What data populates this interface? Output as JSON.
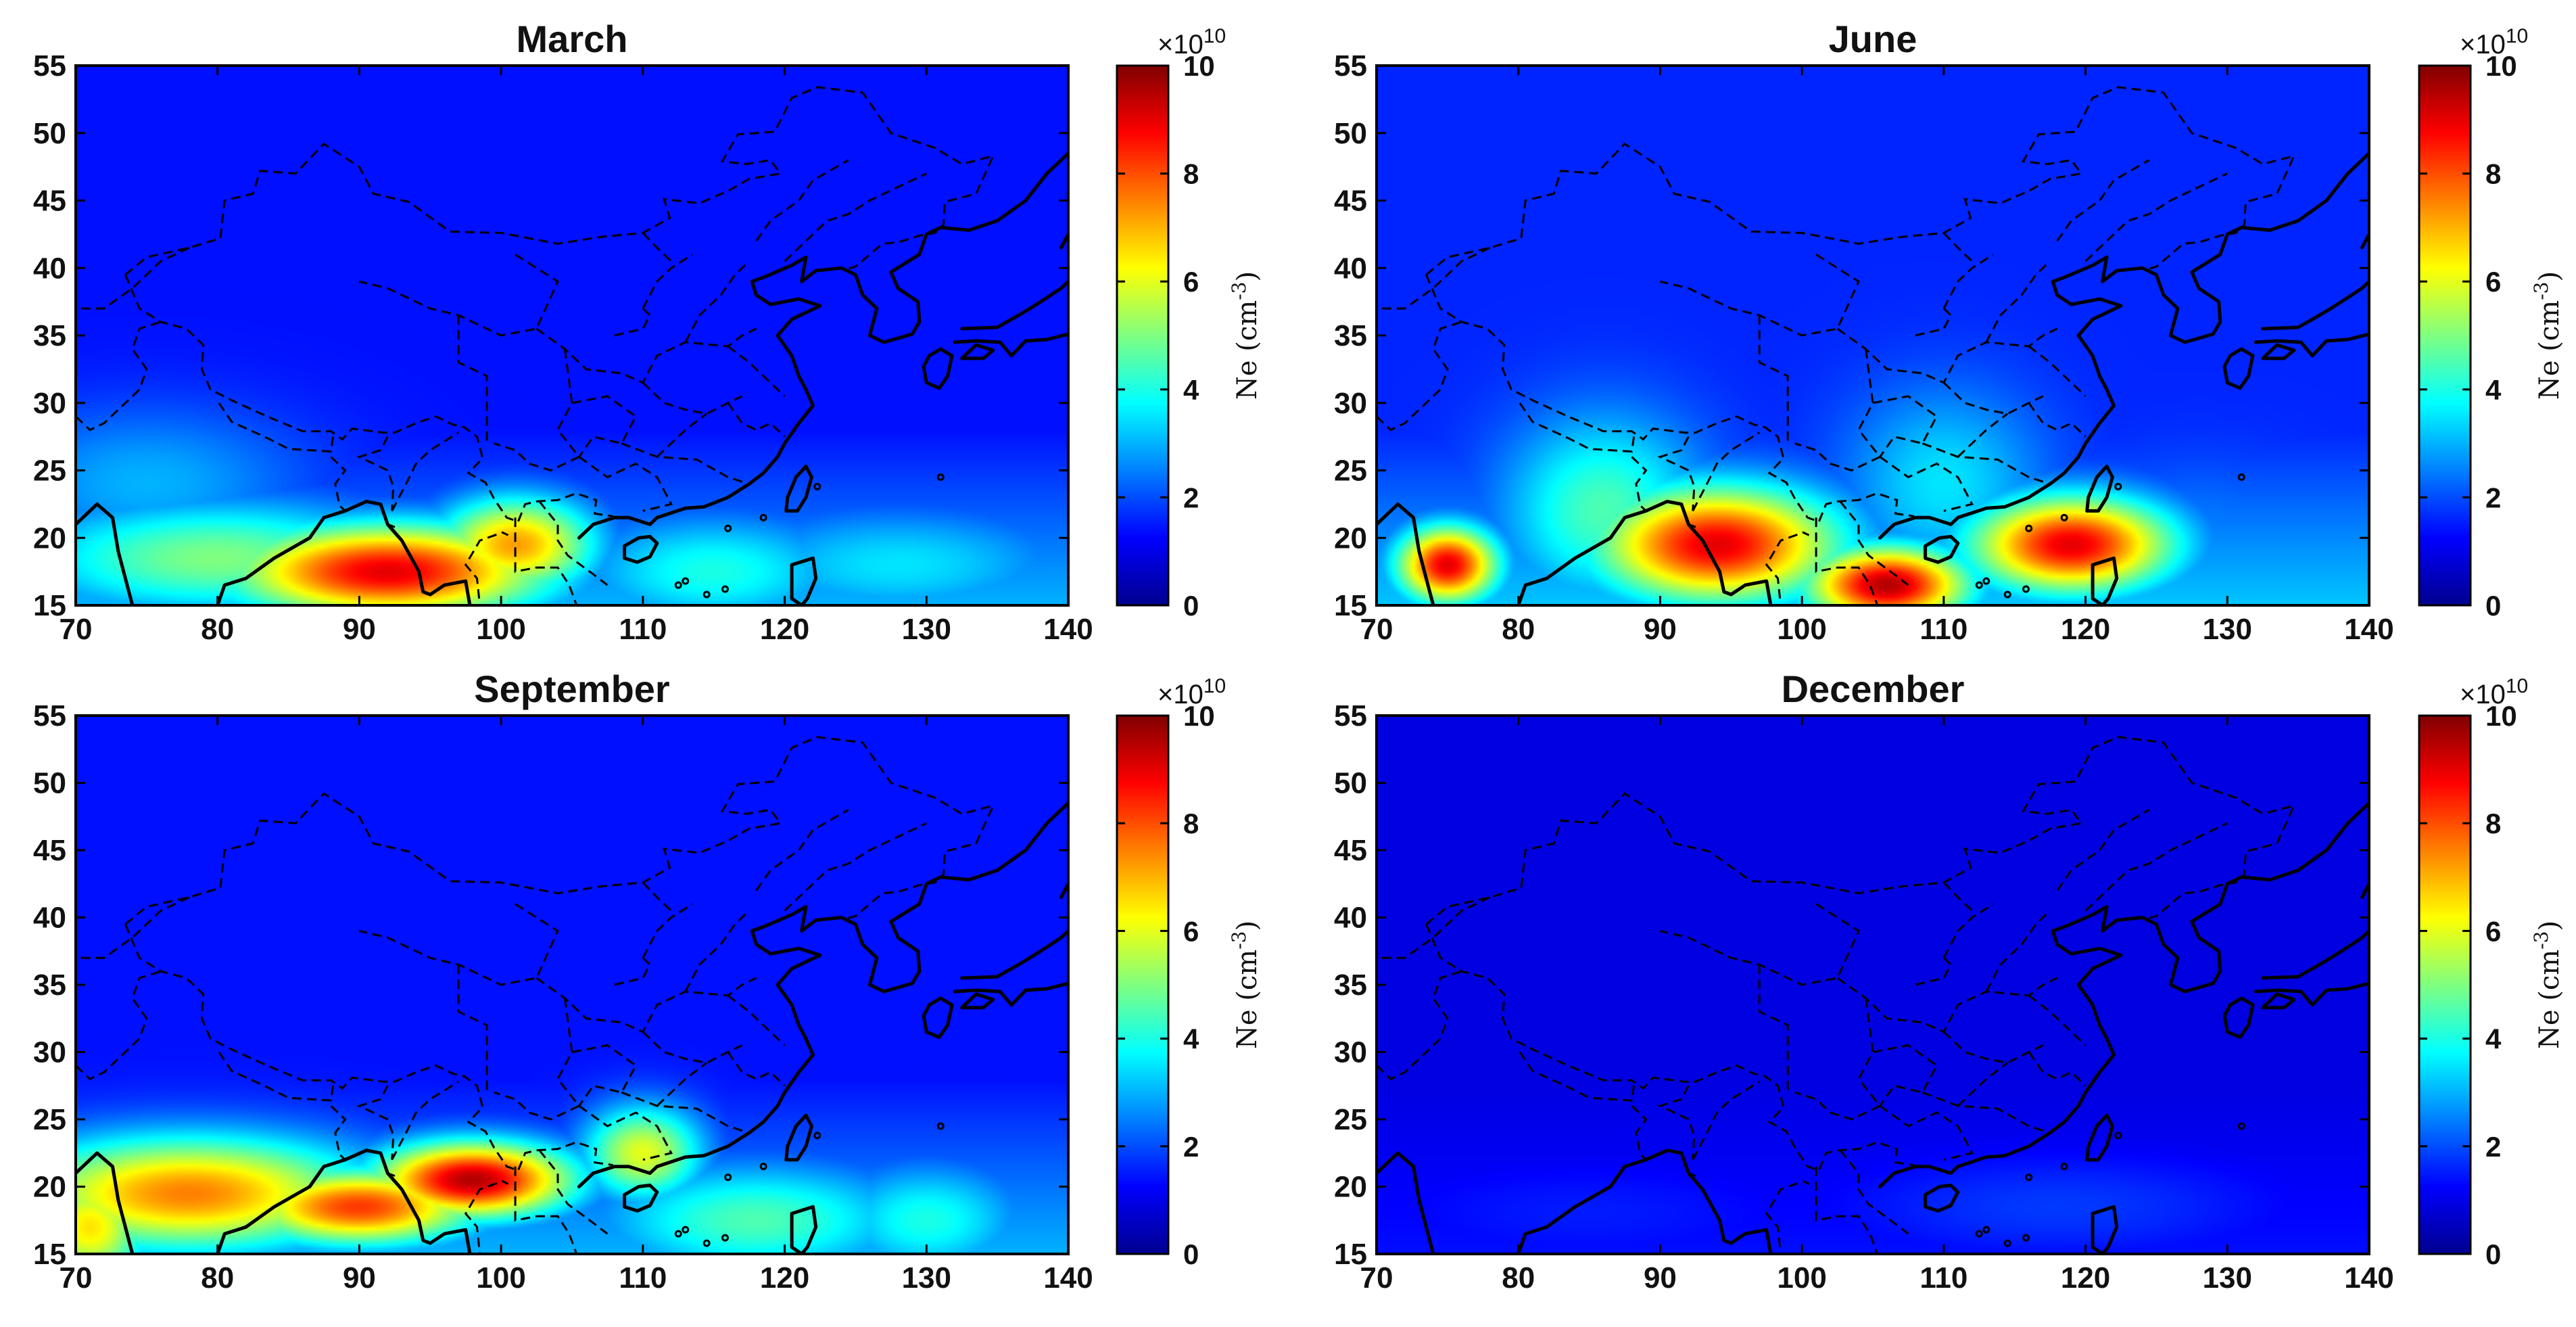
{
  "figure": {
    "description_free": true
  },
  "colormap": [
    "#00008f",
    "#0000ff",
    "#0080ff",
    "#00ffff",
    "#80ff80",
    "#ffff00",
    "#ff8000",
    "#ff0000",
    "#800000"
  ],
  "chart_data": [
    {
      "type": "heatmap",
      "title": "March",
      "xlim": [
        70,
        140
      ],
      "ylim": [
        15,
        55
      ],
      "xticks": [
        "70",
        "80",
        "90",
        "100",
        "110",
        "120",
        "130",
        "140"
      ],
      "yticks": [
        "15",
        "20",
        "25",
        "30",
        "35",
        "40",
        "45",
        "50",
        "55"
      ],
      "background_value": 1.4,
      "hotspots": [
        {
          "lon": 92,
          "lat": 17.5,
          "value": 9.0,
          "sx": 8,
          "sy": 2.5
        },
        {
          "lon": 101,
          "lat": 19.5,
          "value": 7.2,
          "sx": 4,
          "sy": 2.5
        },
        {
          "lon": 80,
          "lat": 18.5,
          "value": 5.0,
          "sx": 10,
          "sy": 3
        },
        {
          "lon": 115,
          "lat": 17.5,
          "value": 4.0,
          "sx": 7,
          "sy": 3
        },
        {
          "lon": 128,
          "lat": 18,
          "value": 3.5,
          "sx": 9,
          "sy": 3
        },
        {
          "lon": 75,
          "lat": 24,
          "value": 3.0,
          "sx": 8,
          "sy": 4
        }
      ],
      "colorbar": {
        "label": "Ne  (cm",
        "label_exp": "-3",
        "label_close": ")",
        "multiplier": "×10",
        "multiplier_exp": "10",
        "min": 0,
        "max": 10,
        "ticks": [
          "0",
          "2",
          "4",
          "6",
          "8",
          "10"
        ]
      }
    },
    {
      "type": "heatmap",
      "title": "June",
      "xlim": [
        70,
        140
      ],
      "ylim": [
        15,
        55
      ],
      "xticks": [
        "70",
        "80",
        "90",
        "100",
        "110",
        "120",
        "130",
        "140"
      ],
      "yticks": [
        "15",
        "20",
        "25",
        "30",
        "35",
        "40",
        "45",
        "50",
        "55"
      ],
      "background_value": 1.6,
      "hotspots": [
        {
          "lon": 75,
          "lat": 18,
          "value": 9.0,
          "sx": 2.5,
          "sy": 2
        },
        {
          "lon": 94,
          "lat": 19.5,
          "value": 9.0,
          "sx": 6,
          "sy": 3
        },
        {
          "lon": 106,
          "lat": 16.5,
          "value": 9.5,
          "sx": 4,
          "sy": 2
        },
        {
          "lon": 119,
          "lat": 19.5,
          "value": 9.0,
          "sx": 5,
          "sy": 2.5
        },
        {
          "lon": 86,
          "lat": 22,
          "value": 4.5,
          "sx": 5,
          "sy": 5
        },
        {
          "lon": 110,
          "lat": 24,
          "value": 3.5,
          "sx": 5,
          "sy": 5
        },
        {
          "lon": 128,
          "lat": 20,
          "value": 2.5,
          "sx": 6,
          "sy": 4
        }
      ],
      "colorbar": {
        "label": "Ne  (cm",
        "label_exp": "-3",
        "label_close": ")",
        "multiplier": "×10",
        "multiplier_exp": "10",
        "min": 0,
        "max": 10,
        "ticks": [
          "0",
          "2",
          "4",
          "6",
          "8",
          "10"
        ]
      }
    },
    {
      "type": "heatmap",
      "title": "September",
      "xlim": [
        70,
        140
      ],
      "ylim": [
        15,
        55
      ],
      "xticks": [
        "70",
        "80",
        "90",
        "100",
        "110",
        "120",
        "130",
        "140"
      ],
      "yticks": [
        "15",
        "20",
        "25",
        "30",
        "35",
        "40",
        "45",
        "50",
        "55"
      ],
      "background_value": 1.4,
      "hotspots": [
        {
          "lon": 98,
          "lat": 20.5,
          "value": 9.5,
          "sx": 5,
          "sy": 2
        },
        {
          "lon": 90,
          "lat": 18.5,
          "value": 8.2,
          "sx": 6,
          "sy": 2
        },
        {
          "lon": 78,
          "lat": 19.5,
          "value": 7.5,
          "sx": 9,
          "sy": 3
        },
        {
          "lon": 71,
          "lat": 17,
          "value": 6.5,
          "sx": 3,
          "sy": 3
        },
        {
          "lon": 110,
          "lat": 22.5,
          "value": 6.0,
          "sx": 3,
          "sy": 2.5
        },
        {
          "lon": 118,
          "lat": 17.5,
          "value": 4.5,
          "sx": 8,
          "sy": 3
        },
        {
          "lon": 130,
          "lat": 17.5,
          "value": 4.0,
          "sx": 5,
          "sy": 3
        }
      ],
      "colorbar": {
        "label": "Ne  (cm",
        "label_exp": "-3",
        "label_close": ")",
        "multiplier": "×10",
        "multiplier_exp": "10",
        "min": 0,
        "max": 10,
        "ticks": [
          "0",
          "2",
          "4",
          "6",
          "8",
          "10"
        ]
      }
    },
    {
      "type": "heatmap",
      "title": "December",
      "xlim": [
        70,
        140
      ],
      "ylim": [
        15,
        55
      ],
      "xticks": [
        "70",
        "80",
        "90",
        "100",
        "110",
        "120",
        "130",
        "140"
      ],
      "yticks": [
        "15",
        "20",
        "25",
        "30",
        "35",
        "40",
        "45",
        "50",
        "55"
      ],
      "background_value": 0.9,
      "hotspots": [
        {
          "lon": 118,
          "lat": 18.5,
          "value": 1.8,
          "sx": 12,
          "sy": 3
        },
        {
          "lon": 85,
          "lat": 18,
          "value": 1.5,
          "sx": 12,
          "sy": 3
        }
      ],
      "colorbar": {
        "label": "Ne  (cm",
        "label_exp": "-3",
        "label_close": ")",
        "multiplier": "×10",
        "multiplier_exp": "10",
        "min": 0,
        "max": 10,
        "ticks": [
          "0",
          "2",
          "4",
          "6",
          "8",
          "10"
        ]
      }
    }
  ]
}
